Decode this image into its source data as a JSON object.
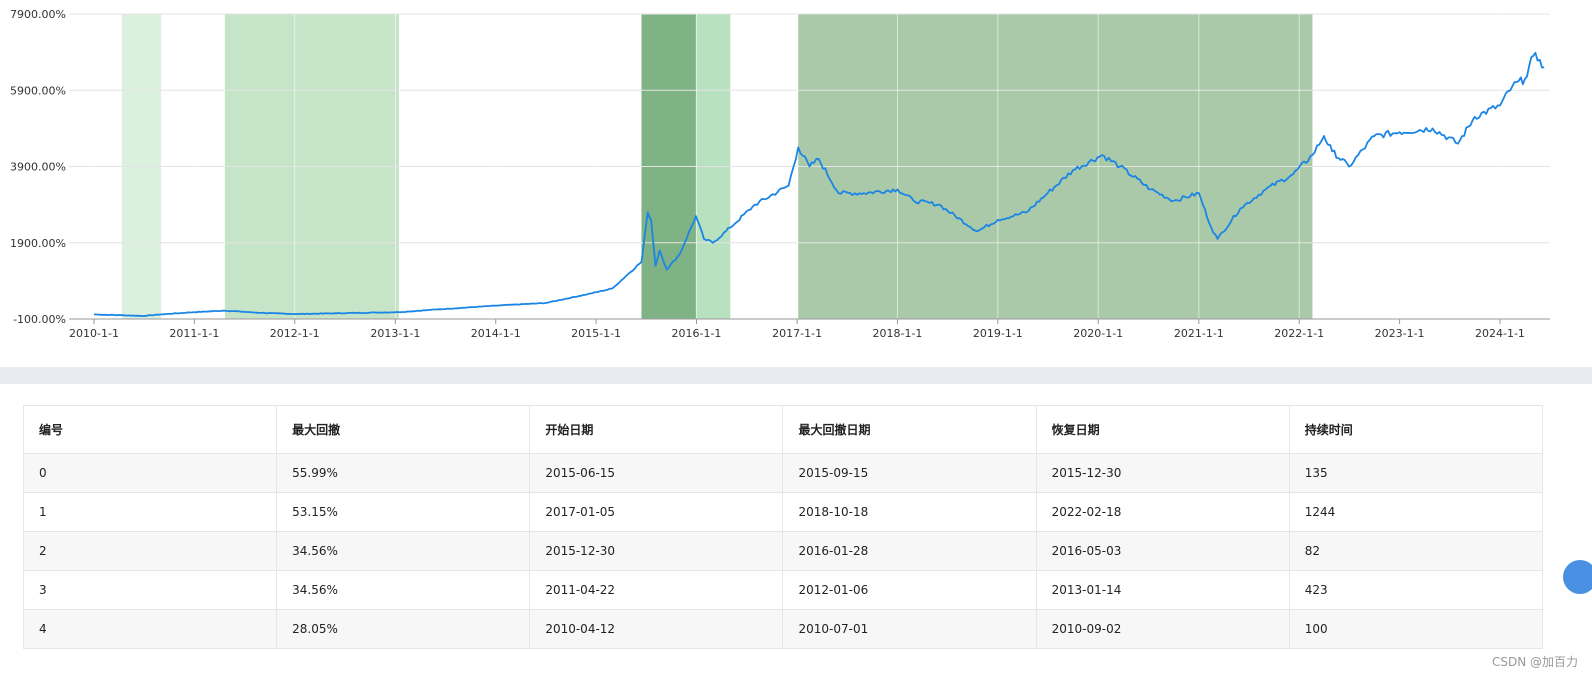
{
  "chart_data": {
    "type": "line",
    "title": "",
    "xlabel": "",
    "ylabel": "",
    "x_range": [
      "2010-01-01",
      "2024-07-01"
    ],
    "ylim": [
      -100,
      7900
    ],
    "y_ticks": [
      "-100.00%",
      "1900.00%",
      "3900.00%",
      "5900.00%",
      "7900.00%"
    ],
    "y_tick_values": [
      -100,
      1900,
      3900,
      5900,
      7900
    ],
    "x_ticks": [
      "2010-1-1",
      "2011-1-1",
      "2012-1-1",
      "2013-1-1",
      "2014-1-1",
      "2015-1-1",
      "2016-1-1",
      "2017-1-1",
      "2018-1-1",
      "2019-1-1",
      "2020-1-1",
      "2021-1-1",
      "2022-1-1",
      "2023-1-1",
      "2024-1-1"
    ],
    "grid": true,
    "line_color": "#1a85e6",
    "series": [
      {
        "x": [
          "2010-01-01",
          "2010-04-12",
          "2010-07-01",
          "2010-09-02",
          "2011-01-01",
          "2011-04-22",
          "2011-09-01",
          "2012-01-06",
          "2012-06-01",
          "2013-01-14",
          "2013-06-01",
          "2014-01-01",
          "2014-07-01",
          "2014-12-01",
          "2015-03-01",
          "2015-06-15",
          "2015-07-08",
          "2015-07-20",
          "2015-08-05",
          "2015-08-20",
          "2015-09-15",
          "2015-11-01",
          "2015-12-30",
          "2016-01-28",
          "2016-03-01",
          "2016-05-03",
          "2016-08-01",
          "2016-12-01",
          "2017-01-05",
          "2017-02-15",
          "2017-03-20",
          "2017-06-01",
          "2017-09-01",
          "2018-01-01",
          "2018-03-01",
          "2018-06-01",
          "2018-10-18",
          "2019-01-01",
          "2019-04-15",
          "2019-07-01",
          "2019-10-01",
          "2020-01-15",
          "2020-03-20",
          "2020-07-10",
          "2020-10-01",
          "2021-01-01",
          "2021-02-15",
          "2021-03-10",
          "2021-06-01",
          "2021-09-01",
          "2021-12-10",
          "2022-02-18",
          "2022-04-01",
          "2022-05-01",
          "2022-07-01",
          "2022-10-01",
          "2023-01-01",
          "2023-05-01",
          "2023-08-01",
          "2023-10-01",
          "2024-01-01",
          "2024-02-15",
          "2024-04-01",
          "2024-05-01",
          "2024-05-25",
          "2024-06-10"
        ],
        "y": [
          20,
          0,
          -20,
          20,
          80,
          120,
          60,
          30,
          50,
          80,
          150,
          250,
          320,
          550,
          700,
          1400,
          2700,
          2500,
          1300,
          1700,
          1200,
          1600,
          2600,
          2000,
          1900,
          2300,
          2900,
          3400,
          4400,
          3900,
          4100,
          3200,
          3200,
          3300,
          3000,
          2900,
          2200,
          2500,
          2700,
          3200,
          3800,
          4200,
          3900,
          3300,
          3000,
          3200,
          2300,
          2000,
          2800,
          3300,
          3700,
          4200,
          4700,
          4300,
          3900,
          4700,
          4800,
          4900,
          4500,
          5200,
          5500,
          6000,
          6200,
          6800,
          6700,
          6500
        ]
      }
    ],
    "drawdown_periods": [
      {
        "id": 0,
        "start": "2015-06-15",
        "trough": "2015-09-15",
        "recovery": "2015-12-30"
      },
      {
        "id": 1,
        "start": "2017-01-05",
        "trough": "2018-10-18",
        "recovery": "2022-02-18"
      },
      {
        "id": 2,
        "start": "2015-12-30",
        "trough": "2016-01-28",
        "recovery": "2016-05-03"
      },
      {
        "id": 3,
        "start": "2011-04-22",
        "trough": "2012-01-06",
        "recovery": "2013-01-14"
      },
      {
        "id": 4,
        "start": "2010-04-12",
        "trough": "2010-07-01",
        "recovery": "2010-09-02"
      }
    ],
    "band_colors": [
      "#7fb285",
      "#a9c9a9",
      "#b8e1bf",
      "#c6e5c8",
      "#dcf0de"
    ]
  },
  "table": {
    "headers": [
      "编号",
      "最大回撤",
      "开始日期",
      "最大回撤日期",
      "恢复日期",
      "持续时间"
    ],
    "rows": [
      [
        "0",
        "55.99%",
        "2015-06-15",
        "2015-09-15",
        "2015-12-30",
        "135"
      ],
      [
        "1",
        "53.15%",
        "2017-01-05",
        "2018-10-18",
        "2022-02-18",
        "1244"
      ],
      [
        "2",
        "34.56%",
        "2015-12-30",
        "2016-01-28",
        "2016-05-03",
        "82"
      ],
      [
        "3",
        "34.56%",
        "2011-04-22",
        "2012-01-06",
        "2013-01-14",
        "423"
      ],
      [
        "4",
        "28.05%",
        "2010-04-12",
        "2010-07-01",
        "2010-09-02",
        "100"
      ]
    ]
  },
  "watermark": "CSDN @加百力"
}
